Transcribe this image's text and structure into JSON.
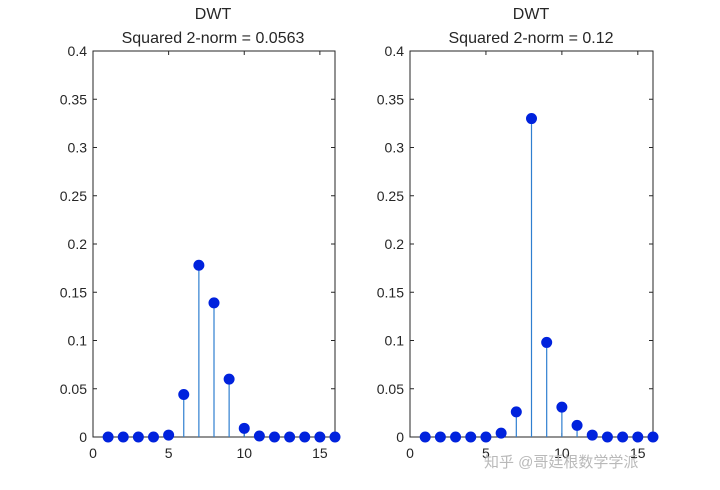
{
  "colors": {
    "stem": "#2f7fd0",
    "marker": "#0022dd",
    "axis": "#262626",
    "background": "#ffffff"
  },
  "chart_data": [
    {
      "type": "stem",
      "title": "DWT",
      "subtitle": "Squared 2-norm = 0.0563",
      "xlabel": "",
      "ylabel": "",
      "xlim": [
        0,
        16
      ],
      "ylim": [
        0,
        0.4
      ],
      "xticks": [
        "0",
        "5",
        "10",
        "15"
      ],
      "yticks": [
        "0",
        "0.05",
        "0.1",
        "0.15",
        "0.2",
        "0.25",
        "0.3",
        "0.35",
        "0.4"
      ],
      "grid": false,
      "x": [
        1,
        2,
        3,
        4,
        5,
        6,
        7,
        8,
        9,
        10,
        11,
        12,
        13,
        14,
        15,
        16
      ],
      "values": [
        0,
        0,
        0,
        0,
        0.002,
        0.044,
        0.178,
        0.139,
        0.06,
        0.009,
        0.001,
        0,
        0,
        0,
        0,
        0
      ]
    },
    {
      "type": "stem",
      "title": "DWT",
      "subtitle": "Squared 2-norm = 0.12",
      "xlabel": "",
      "ylabel": "",
      "xlim": [
        0,
        16
      ],
      "ylim": [
        0,
        0.4
      ],
      "xticks": [
        "0",
        "5",
        "10",
        "15"
      ],
      "yticks": [
        "0",
        "0.05",
        "0.1",
        "0.15",
        "0.2",
        "0.25",
        "0.3",
        "0.35",
        "0.4"
      ],
      "grid": false,
      "x": [
        1,
        2,
        3,
        4,
        5,
        6,
        7,
        8,
        9,
        10,
        11,
        12,
        13,
        14,
        15,
        16
      ],
      "values": [
        0,
        0,
        0,
        0,
        0,
        0.004,
        0.026,
        0.33,
        0.098,
        0.031,
        0.012,
        0.002,
        0,
        0,
        0,
        0
      ]
    }
  ],
  "watermark": {
    "text": "知乎 @哥廷根数学学派"
  }
}
